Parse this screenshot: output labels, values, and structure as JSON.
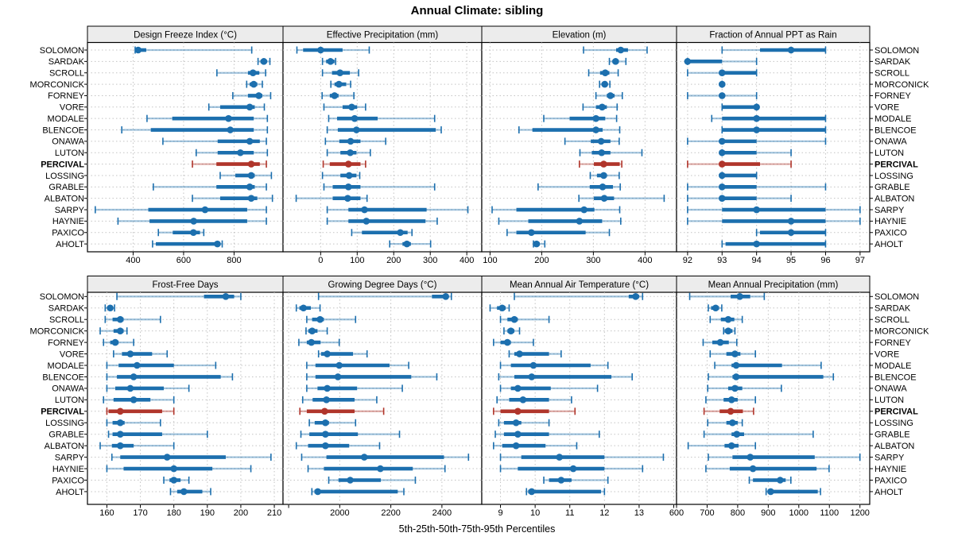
{
  "chart_data": {
    "type": "dotplot-trellis",
    "title": "Annual Climate: sibling",
    "caption": "5th-25th-50th-75th-95th Percentiles",
    "percentiles": [
      5,
      25,
      50,
      75,
      95
    ],
    "legend_position": "none",
    "grid": "dotted",
    "colors": {
      "series": "#1c6fae",
      "highlight": "#b0352b",
      "whisker_alpha": 0.4,
      "gridline": "#c3c3c3",
      "strip_bg": "#ececec",
      "border": "#000000",
      "text": "#000000"
    },
    "stations": [
      "SOLOMON",
      "SARDAK",
      "SCROLL",
      "MORCONICK",
      "FORNEY",
      "VORE",
      "MODALE",
      "BLENCOE",
      "ONAWA",
      "LUTON",
      "PERCIVAL",
      "LOSSING",
      "GRABLE",
      "ALBATON",
      "SARPY",
      "HAYNIE",
      "PAXICO",
      "AHOLT"
    ],
    "highlight_station": "PERCIVAL",
    "panels": [
      {
        "title": "Design Freeze Index (°C)",
        "row": 0,
        "col": 0,
        "xlim": [
          219,
          994
        ],
        "ticks": [
          400,
          600,
          800,
          1000
        ],
        "tick_labels": [
          "400",
          "600",
          "800",
          ""
        ],
        "values": [
          [
            408,
            412,
            420,
            452,
            870
          ],
          [
            895,
            905,
            918,
            930,
            942
          ],
          [
            732,
            855,
            875,
            900,
            925
          ],
          [
            850,
            862,
            878,
            892,
            912
          ],
          [
            795,
            855,
            898,
            912,
            945
          ],
          [
            700,
            745,
            862,
            882,
            920
          ],
          [
            455,
            555,
            778,
            878,
            932
          ],
          [
            355,
            470,
            785,
            878,
            932
          ],
          [
            518,
            735,
            862,
            902,
            928
          ],
          [
            650,
            735,
            825,
            878,
            932
          ],
          [
            635,
            730,
            868,
            902,
            928
          ],
          [
            745,
            805,
            868,
            882,
            948
          ],
          [
            480,
            730,
            862,
            882,
            928
          ],
          [
            635,
            745,
            868,
            892,
            952
          ],
          [
            250,
            460,
            685,
            852,
            928
          ],
          [
            340,
            465,
            640,
            852,
            928
          ],
          [
            500,
            557,
            639,
            665,
            680
          ],
          [
            477,
            490,
            734,
            745,
            753
          ]
        ]
      },
      {
        "title": "Effective Precipitation (mm)",
        "row": 0,
        "col": 1,
        "xlim": [
          -103,
          441
        ],
        "ticks": [
          0,
          100,
          200,
          300,
          400
        ],
        "tick_labels": [
          "0",
          "100",
          "200",
          "300",
          "400"
        ],
        "values": [
          [
            -65,
            -48,
            0,
            60,
            133
          ],
          [
            5,
            15,
            27,
            38,
            41
          ],
          [
            5,
            31,
            53,
            80,
            104
          ],
          [
            28,
            38,
            50,
            70,
            82
          ],
          [
            4,
            25,
            38,
            49,
            91
          ],
          [
            9,
            60,
            85,
            100,
            123
          ],
          [
            22,
            45,
            93,
            156,
            312
          ],
          [
            18,
            47,
            98,
            315,
            330
          ],
          [
            13,
            51,
            82,
            109,
            178
          ],
          [
            18,
            54,
            81,
            98,
            136
          ],
          [
            7,
            25,
            76,
            109,
            123
          ],
          [
            5,
            54,
            78,
            98,
            107
          ],
          [
            9,
            33,
            76,
            109,
            312
          ],
          [
            -67,
            33,
            74,
            109,
            127
          ],
          [
            18,
            76,
            120,
            290,
            403
          ],
          [
            18,
            76,
            125,
            287,
            319
          ],
          [
            85,
            113,
            218,
            238,
            250
          ],
          [
            189,
            224,
            236,
            247,
            301
          ]
        ]
      },
      {
        "title": "Elevation (m)",
        "row": 0,
        "col": 2,
        "xlim": [
          84,
          461
        ],
        "ticks": [
          100,
          200,
          300,
          400
        ],
        "tick_labels": [
          "100",
          "200",
          "300",
          "400"
        ],
        "values": [
          [
            281,
            344,
            353,
            367,
            404
          ],
          [
            331,
            337,
            343,
            349,
            363
          ],
          [
            291,
            313,
            323,
            331,
            348
          ],
          [
            312,
            317,
            322,
            326,
            332
          ],
          [
            305,
            326,
            333,
            341,
            356
          ],
          [
            280,
            305,
            317,
            326,
            346
          ],
          [
            204,
            254,
            305,
            323,
            345
          ],
          [
            156,
            182,
            305,
            318,
            351
          ],
          [
            245,
            295,
            315,
            333,
            350
          ],
          [
            274,
            297,
            316,
            333,
            394
          ],
          [
            273,
            301,
            320,
            351,
            355
          ],
          [
            294,
            307,
            320,
            326,
            350
          ],
          [
            193,
            293,
            318,
            338,
            352
          ],
          [
            272,
            301,
            321,
            340,
            437
          ],
          [
            104,
            151,
            282,
            302,
            351
          ],
          [
            117,
            174,
            273,
            317,
            353
          ],
          [
            133,
            151,
            180,
            285,
            331
          ],
          [
            184,
            187,
            190,
            196,
            206
          ]
        ]
      },
      {
        "title": "Fraction of Annual PPT as Rain",
        "row": 0,
        "col": 3,
        "xlim": [
          91.68,
          97.28
        ],
        "ticks": [
          92,
          93,
          94,
          95,
          96,
          97
        ],
        "tick_labels": [
          "92",
          "93",
          "94",
          "95",
          "96",
          "97"
        ],
        "values": [
          [
            93,
            94.1,
            95,
            96,
            96
          ],
          [
            92,
            92,
            92,
            93,
            94
          ],
          [
            92,
            93,
            93,
            94,
            94
          ],
          [
            93,
            93,
            93,
            93,
            93
          ],
          [
            92,
            93,
            93,
            93,
            94
          ],
          [
            93,
            93,
            94,
            94,
            94
          ],
          [
            92.7,
            93,
            94,
            96,
            96
          ],
          [
            93,
            93,
            94,
            96,
            96
          ],
          [
            92,
            93,
            93,
            94,
            96
          ],
          [
            93,
            93,
            93,
            94,
            95
          ],
          [
            92,
            93,
            93,
            94.1,
            95
          ],
          [
            93,
            93,
            93,
            94,
            94
          ],
          [
            92,
            93,
            93,
            94,
            96
          ],
          [
            92,
            93,
            93,
            94,
            95
          ],
          [
            92,
            93,
            94,
            96,
            97
          ],
          [
            92,
            93,
            95,
            96,
            97
          ],
          [
            94,
            94.1,
            95,
            96,
            96
          ],
          [
            93,
            93.1,
            94,
            96,
            96
          ]
        ]
      },
      {
        "title": "Frost-Free Days",
        "row": 1,
        "col": 0,
        "xlim": [
          154.2,
          212.6
        ],
        "ticks": [
          160,
          170,
          180,
          190,
          200,
          210
        ],
        "tick_labels": [
          "160",
          "170",
          "180",
          "190",
          "200",
          "210"
        ],
        "values": [
          [
            163,
            189,
            195.5,
            198,
            200
          ],
          [
            159.5,
            160.3,
            161,
            161.6,
            162.3
          ],
          [
            159.5,
            161.7,
            164,
            165,
            176
          ],
          [
            158,
            162,
            164,
            165,
            166
          ],
          [
            159,
            161,
            162.5,
            163.5,
            168
          ],
          [
            162,
            164.5,
            167,
            173.5,
            178
          ],
          [
            160,
            163.5,
            169,
            180,
            192.5
          ],
          [
            160,
            163,
            168,
            194,
            197.5
          ],
          [
            160,
            162.5,
            167,
            177,
            184.5
          ],
          [
            159,
            162,
            168,
            173,
            180
          ],
          [
            160,
            160.5,
            164,
            176.5,
            180
          ],
          [
            160,
            161.7,
            164,
            165.3,
            176
          ],
          [
            160.5,
            161.7,
            164,
            176.5,
            190
          ],
          [
            158,
            161.5,
            164,
            168,
            180
          ],
          [
            161.5,
            164,
            178,
            195.5,
            209
          ],
          [
            160,
            165,
            180,
            191.5,
            203
          ],
          [
            177,
            178.7,
            180,
            182,
            184.5
          ],
          [
            179,
            181,
            183,
            188.5,
            191
          ]
        ]
      },
      {
        "title": "Growing Degree Days (°C)",
        "row": 1,
        "col": 1,
        "xlim": [
          1778,
          2556
        ],
        "ticks": [
          1800,
          2000,
          2200,
          2400
        ],
        "tick_labels": [
          "",
          "2000",
          "2200",
          "2400"
        ],
        "values": [
          [
            1917,
            2361,
            2415,
            2424,
            2437
          ],
          [
            1830,
            1842,
            1858,
            1887,
            1923
          ],
          [
            1871,
            1892,
            1923,
            1938,
            2062
          ],
          [
            1868,
            1877,
            1892,
            1913,
            1951
          ],
          [
            1840,
            1871,
            1889,
            1925,
            1998
          ],
          [
            1917,
            1927,
            1951,
            2052,
            2107
          ],
          [
            1871,
            1905,
            1998,
            2195,
            2270
          ],
          [
            1871,
            1905,
            1993,
            2280,
            2380
          ],
          [
            1871,
            1913,
            1951,
            2068,
            2245
          ],
          [
            1855,
            1894,
            1948,
            2058,
            2145
          ],
          [
            1844,
            1871,
            1941,
            2058,
            2172
          ],
          [
            1881,
            1902,
            1944,
            1958,
            2062
          ],
          [
            1848,
            1881,
            1944,
            2071,
            2234
          ],
          [
            1830,
            1876,
            1944,
            2037,
            2156
          ],
          [
            1851,
            1948,
            2096,
            2408,
            2504
          ],
          [
            1876,
            1938,
            2159,
            2286,
            2412
          ],
          [
            1957,
            1995,
            2041,
            2161,
            2296
          ],
          [
            1891,
            1901,
            1914,
            2227,
            2251
          ]
        ]
      },
      {
        "title": "Mean Annual Air Temperature (°C)",
        "row": 1,
        "col": 2,
        "xlim": [
          8.46,
          14.08
        ],
        "ticks": [
          9,
          10,
          11,
          12,
          13,
          14
        ],
        "tick_labels": [
          "9",
          "10",
          "11",
          "12",
          "13",
          ""
        ],
        "values": [
          [
            9.4,
            12.7,
            12.9,
            13.0,
            13.1
          ],
          [
            8.7,
            8.9,
            9.05,
            9.15,
            9.25
          ],
          [
            9.0,
            9.2,
            9.4,
            9.5,
            10.4
          ],
          [
            9.1,
            9.2,
            9.3,
            9.4,
            9.55
          ],
          [
            8.8,
            9.0,
            9.2,
            9.3,
            9.95
          ],
          [
            9.25,
            9.4,
            9.55,
            10.4,
            10.75
          ],
          [
            9.0,
            9.3,
            9.95,
            11.6,
            12.1
          ],
          [
            8.95,
            9.4,
            9.9,
            12.2,
            12.8
          ],
          [
            9.0,
            9.3,
            9.5,
            10.45,
            11.8
          ],
          [
            8.9,
            9.25,
            9.65,
            10.4,
            11.05
          ],
          [
            8.8,
            9.0,
            9.5,
            10.4,
            11.15
          ],
          [
            8.95,
            9.1,
            9.45,
            9.6,
            10.4
          ],
          [
            8.85,
            9.1,
            9.5,
            10.4,
            11.85
          ],
          [
            8.8,
            9.05,
            9.45,
            10.3,
            11.2
          ],
          [
            9.0,
            9.6,
            10.7,
            12.0,
            13.7
          ],
          [
            9.0,
            9.5,
            11.1,
            12.0,
            13.1
          ],
          [
            10.25,
            10.4,
            10.75,
            11.05,
            12.1
          ],
          [
            9.75,
            9.8,
            9.9,
            11.9,
            12.0
          ]
        ]
      },
      {
        "title": "Mean Annual Precipitation (mm)",
        "row": 1,
        "col": 3,
        "xlim": [
          600,
          1232
        ],
        "ticks": [
          600,
          700,
          800,
          900,
          1000,
          1100,
          1200
        ],
        "tick_labels": [
          "600",
          "700",
          "800",
          "900",
          "1000",
          "1100",
          "1200"
        ],
        "values": [
          [
            643,
            777,
            807,
            841,
            887
          ],
          [
            704,
            713,
            728,
            739,
            748
          ],
          [
            710,
            745,
            769,
            789,
            815
          ],
          [
            754,
            757,
            769,
            783,
            791
          ],
          [
            687,
            717,
            743,
            771,
            797
          ],
          [
            710,
            763,
            791,
            809,
            858
          ],
          [
            725,
            780,
            795,
            945,
            1073
          ],
          [
            704,
            783,
            795,
            1080,
            1113
          ],
          [
            702,
            769,
            791,
            815,
            943
          ],
          [
            696,
            754,
            780,
            800,
            858
          ],
          [
            690,
            741,
            777,
            817,
            852
          ],
          [
            702,
            763,
            783,
            800,
            815
          ],
          [
            690,
            780,
            797,
            821,
            1047
          ],
          [
            638,
            757,
            780,
            803,
            858
          ],
          [
            704,
            783,
            841,
            1052,
            1200
          ],
          [
            696,
            774,
            850,
            1058,
            1099
          ],
          [
            838,
            850,
            939,
            957,
            974
          ],
          [
            893,
            898,
            908,
            1062,
            1071
          ]
        ]
      }
    ]
  }
}
